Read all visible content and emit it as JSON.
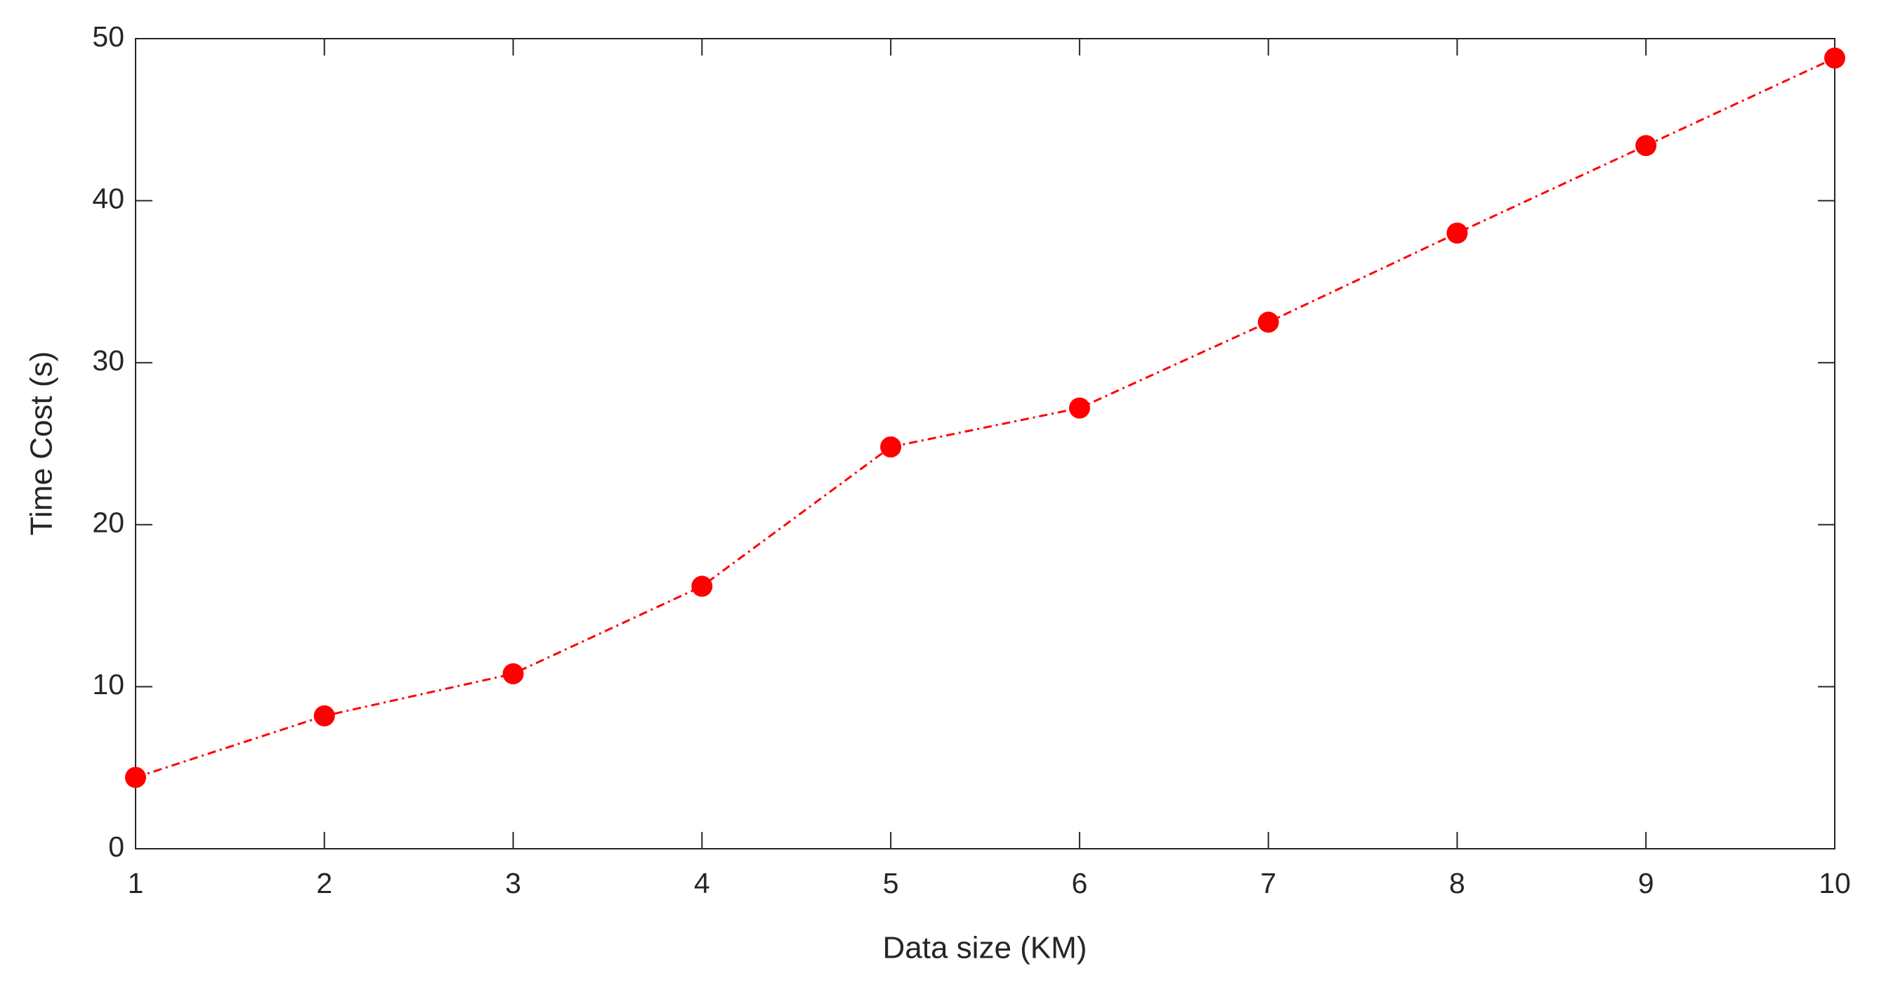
{
  "chart_data": {
    "type": "line",
    "x_label": "Data size (KM)",
    "y_label": "Time Cost (s)",
    "x": [
      1,
      2,
      3,
      4,
      5,
      6,
      7,
      8,
      9,
      10
    ],
    "series": [
      {
        "name": "Time Cost",
        "color": "#ff0000",
        "values": [
          4.4,
          8.2,
          10.8,
          16.2,
          24.8,
          27.2,
          32.5,
          38.0,
          43.4,
          48.8
        ]
      }
    ],
    "xlim": [
      1,
      10
    ],
    "xticks": [
      1,
      2,
      3,
      4,
      5,
      6,
      7,
      8,
      9,
      10
    ],
    "ylim": [
      0,
      50
    ],
    "yticks": [
      0,
      10,
      20,
      30,
      40,
      50
    ],
    "grid": false,
    "line_style": "dashdot",
    "marker": "circle"
  }
}
